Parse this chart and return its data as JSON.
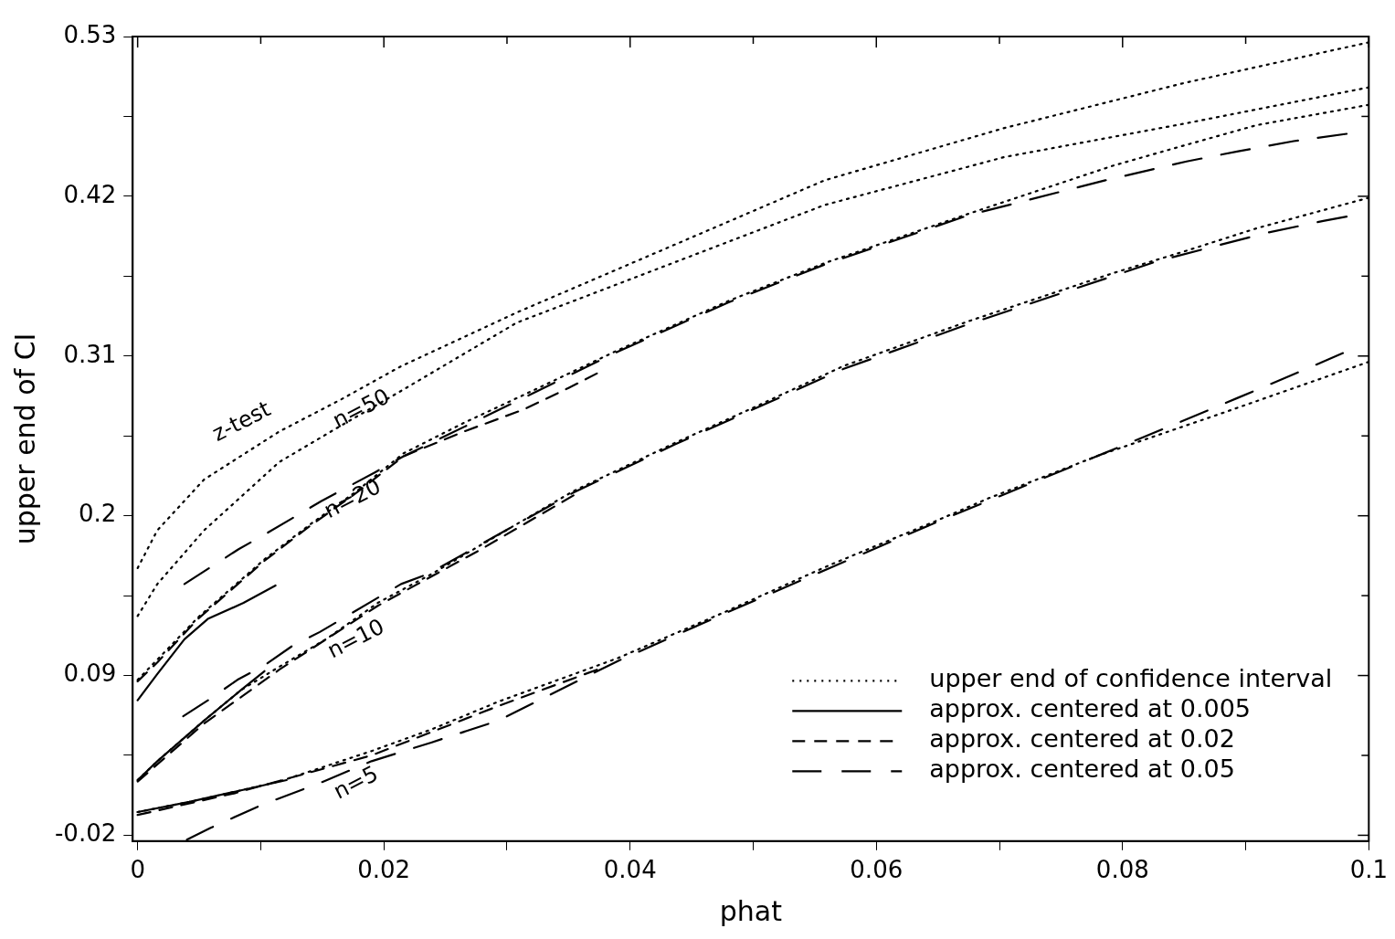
{
  "chart_data": {
    "type": "line",
    "xlabel": "phat",
    "ylabel": "upper end of CI",
    "xlim": [
      -0.0004,
      0.1
    ],
    "ylim": [
      -0.024,
      0.53
    ],
    "xticks": [
      0,
      {
        "value": 0.01,
        "label": null
      },
      0.02,
      {
        "value": 0.03,
        "label": null
      },
      0.04,
      {
        "value": 0.05,
        "label": null
      },
      0.06,
      {
        "value": 0.07,
        "label": null
      },
      0.08,
      {
        "value": 0.09,
        "label": null
      },
      0.1
    ],
    "yticks": [
      -0.02,
      {
        "value": 0.035,
        "label": null
      },
      0.09,
      {
        "value": 0.145,
        "label": null
      },
      0.2,
      {
        "value": 0.255,
        "label": null
      },
      0.31,
      {
        "value": 0.365,
        "label": null
      },
      0.42,
      {
        "value": 0.475,
        "label": null
      },
      0.53
    ],
    "legend": "bottom right",
    "annotations": [
      "z-test",
      {
        "text": "n=50",
        "x": 0.0182,
        "y": 0.273
      },
      {
        "text": "n=20",
        "x": 0.0175,
        "y": 0.211
      },
      "n=10",
      "n=5"
    ],
    "series": [
      {
        "name": "upper end of confidence interval",
        "color": "#000000",
        "line_style": "dotted",
        "x": [
          0,
          0.0016,
          0.0054,
          0.0115,
          0.0165,
          0.0214,
          0.0308,
          0.0558,
          0.0704,
          0.085,
          0.1
        ],
        "values": [
          0.164,
          0.19,
          0.225,
          0.258,
          0.28,
          0.303,
          0.34,
          0.431,
          0.467,
          0.498,
          0.526
        ]
      },
      {
        "color": "#000000",
        "line_style": "dotted",
        "x": [
          0,
          0.0016,
          0.0054,
          0.0115,
          0.0165,
          0.0214,
          0.0308,
          0.0558,
          0.0704,
          0.085,
          0.1
        ],
        "values": [
          0.131,
          0.153,
          0.19,
          0.237,
          0.262,
          0.286,
          0.333,
          0.414,
          0.447,
          0.47,
          0.495
        ]
      },
      {
        "color": "#000000",
        "line_style": "dotted",
        "x": [
          0,
          0.0016,
          0.0049,
          0.0103,
          0.014,
          0.0178,
          0.0216,
          0.0265,
          0.0313,
          0.039,
          0.048,
          0.0558,
          0.0675,
          0.0792,
          0.085,
          0.0909,
          0.1
        ],
        "values": [
          0.087,
          0.101,
          0.13,
          0.17,
          0.194,
          0.217,
          0.243,
          0.264,
          0.283,
          0.314,
          0.348,
          0.374,
          0.408,
          0.441,
          0.455,
          0.469,
          0.483
        ]
      },
      {
        "color": "#000000",
        "line_style": "dotted",
        "x": [
          0,
          0.0016,
          0.0054,
          0.0084,
          0.0115,
          0.0153,
          0.0195,
          0.0239,
          0.0277,
          0.0354,
          0.0436,
          0.0499,
          0.0573,
          0.0675,
          0.0792,
          0.085,
          0.0909,
          0.1
        ],
        "values": [
          0.018,
          0.031,
          0.059,
          0.08,
          0.096,
          0.115,
          0.14,
          0.16,
          0.179,
          0.217,
          0.25,
          0.274,
          0.303,
          0.334,
          0.367,
          0.382,
          0.398,
          0.419
        ]
      },
      {
        "color": "#000000",
        "line_style": "dotted",
        "x": [
          0,
          0.0042,
          0.0079,
          0.0115,
          0.019,
          0.0239,
          0.0293,
          0.039,
          0.0475,
          0.0562,
          0.065,
          0.0691,
          0.0782,
          0.0882,
          0.1
        ],
        "values": [
          -0.004,
          0.003,
          0.01,
          0.017,
          0.038,
          0.053,
          0.072,
          0.102,
          0.133,
          0.166,
          0.197,
          0.212,
          0.242,
          0.271,
          0.306
        ]
      },
      {
        "name": "approx. centered at 0.005",
        "color": "#000000",
        "line_style": "solid",
        "x": [
          0,
          0.0016,
          0.0038,
          0.0057,
          0.0086,
          0.0112
        ],
        "values": [
          0.073,
          0.091,
          0.115,
          0.129,
          0.14,
          0.152
        ]
      },
      {
        "color": "#000000",
        "line_style": "solid",
        "x": [
          0,
          0.0016,
          0.0054,
          0.0084,
          0.0103
        ],
        "values": [
          0.018,
          0.031,
          0.059,
          0.08,
          0.093
        ]
      },
      {
        "color": "#000000",
        "line_style": "solid",
        "x": [
          0,
          0.0042,
          0.0079,
          0.0121
        ],
        "values": [
          -0.004,
          0.003,
          0.01,
          0.018
        ]
      },
      {
        "name": "approx. centered at 0.02",
        "color": "#000000",
        "line_style": "dashed",
        "x": [
          0,
          0.0016,
          0.0049,
          0.0103,
          0.014,
          0.0178,
          0.0216,
          0.0265,
          0.0313,
          0.035,
          0.0373
        ],
        "values": [
          0.086,
          0.099,
          0.129,
          0.169,
          0.193,
          0.216,
          0.241,
          0.258,
          0.273,
          0.288,
          0.298
        ]
      },
      {
        "color": "#000000",
        "line_style": "dashed",
        "x": [
          0,
          0.0054,
          0.0115,
          0.0195,
          0.0277,
          0.0354
        ],
        "values": [
          0.017,
          0.057,
          0.094,
          0.138,
          0.176,
          0.214
        ]
      },
      {
        "color": "#000000",
        "line_style": "dashed",
        "x": [
          0,
          0.0079,
          0.019,
          0.0293,
          0.0373
        ],
        "values": [
          -0.006,
          0.009,
          0.035,
          0.069,
          0.094
        ]
      },
      {
        "name": "approx. centered at 0.05",
        "color": "#000000",
        "line_style": "longdash",
        "x": [
          0.0038,
          0.006,
          0.0082,
          0.0105,
          0.0125,
          0.0149,
          0.0171,
          0.0193,
          0.0216,
          0.0238,
          0.0313,
          0.039,
          0.048,
          0.0558,
          0.0675,
          0.0786,
          0.0852,
          0.0894,
          0.0939,
          0.0982
        ],
        "values": [
          0.153,
          0.165,
          0.177,
          0.188,
          0.198,
          0.21,
          0.22,
          0.23,
          0.241,
          0.25,
          0.281,
          0.313,
          0.347,
          0.373,
          0.407,
          0.431,
          0.444,
          0.451,
          0.458,
          0.463
        ]
      },
      {
        "color": "#000000",
        "line_style": "longdash",
        "x": [
          0.0037,
          0.0059,
          0.0081,
          0.0103,
          0.0125,
          0.0148,
          0.017,
          0.0192,
          0.0214,
          0.0236,
          0.0354,
          0.0436,
          0.0573,
          0.0675,
          0.0792,
          0.0827,
          0.0872,
          0.0918,
          0.0963,
          0.0982
        ],
        "values": [
          0.062,
          0.074,
          0.087,
          0.097,
          0.11,
          0.12,
          0.131,
          0.142,
          0.153,
          0.16,
          0.216,
          0.249,
          0.301,
          0.332,
          0.365,
          0.375,
          0.385,
          0.395,
          0.403,
          0.406
        ]
      },
      {
        "color": "#000000",
        "line_style": "longdash",
        "x": [
          0.004,
          0.0059,
          0.0101,
          0.0148,
          0.019,
          0.0239,
          0.0293,
          0.039,
          0.0475,
          0.0562,
          0.065,
          0.0782,
          0.0848,
          0.0893,
          0.0935,
          0.0979
        ],
        "values": [
          -0.023,
          -0.015,
          0.001,
          0.016,
          0.031,
          0.044,
          0.059,
          0.1,
          0.132,
          0.164,
          0.196,
          0.242,
          0.265,
          0.281,
          0.296,
          0.312
        ]
      }
    ]
  }
}
